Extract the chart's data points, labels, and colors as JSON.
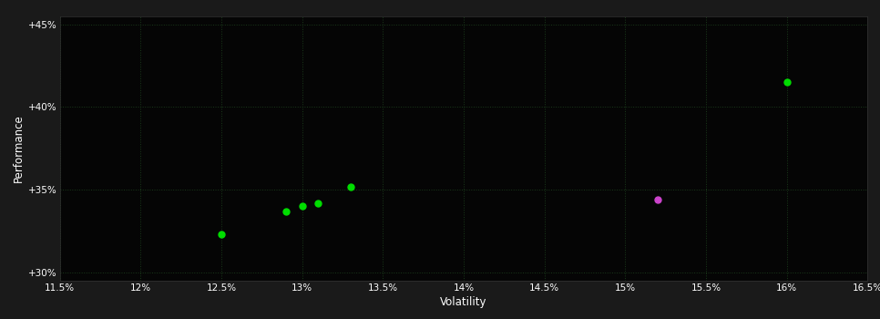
{
  "background_color": "#1a1a1a",
  "plot_bg_color": "#050505",
  "grid_color": "#1a3a1a",
  "xlabel": "Volatility",
  "ylabel": "Performance",
  "xlim": [
    0.115,
    0.165
  ],
  "ylim": [
    0.295,
    0.455
  ],
  "xtick_labels": [
    "11.5%",
    "12%",
    "12.5%",
    "13%",
    "13.5%",
    "14%",
    "14.5%",
    "15%",
    "15.5%",
    "16%",
    "16.5%"
  ],
  "xtick_values": [
    0.115,
    0.12,
    0.125,
    0.13,
    0.135,
    0.14,
    0.145,
    0.15,
    0.155,
    0.16,
    0.165
  ],
  "ytick_labels": [
    "+30%",
    "+35%",
    "+40%",
    "+45%"
  ],
  "ytick_values": [
    0.3,
    0.35,
    0.4,
    0.45
  ],
  "green_points": [
    [
      0.125,
      0.323
    ],
    [
      0.129,
      0.337
    ],
    [
      0.13,
      0.34
    ],
    [
      0.131,
      0.342
    ],
    [
      0.133,
      0.352
    ],
    [
      0.16,
      0.415
    ]
  ],
  "purple_points": [
    [
      0.152,
      0.344
    ]
  ],
  "green_color": "#00dd00",
  "purple_color": "#cc44cc",
  "point_size": 25
}
